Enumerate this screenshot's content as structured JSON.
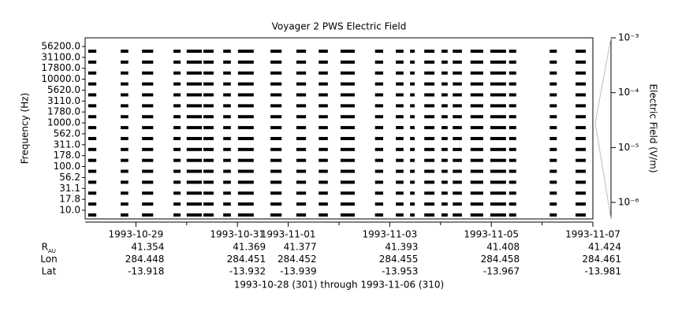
{
  "chart_data": {
    "type": "strip",
    "title": "Voyager 2 PWS Electric Field",
    "y_label": "Frequency (Hz)",
    "y2_label": "Electric Field (V/m)",
    "categories": [
      "56200.0",
      "31100.0",
      "17800.0",
      "10000.0",
      "5620.0",
      "3110.0",
      "1780.0",
      "1000.0",
      "562.0",
      "311.0",
      "178.0",
      "100.0",
      "56.2",
      "31.1",
      "17.8",
      "10.0"
    ],
    "color": "#000000",
    "xlim": [
      0,
      10
    ],
    "xticks": [
      {
        "value": 1,
        "label": "1993-10-29"
      },
      {
        "value": 3,
        "label": "1993-10-31"
      },
      {
        "value": 4,
        "label": "1993-11-01"
      },
      {
        "value": 6,
        "label": "1993-11-03"
      },
      {
        "value": 8,
        "label": "1993-11-05"
      },
      {
        "value": 10,
        "label": "1993-11-07"
      }
    ],
    "xminorticks": [
      2,
      5,
      7,
      9
    ],
    "coverage": [
      [
        0.06,
        0.22
      ],
      [
        0.7,
        0.85
      ],
      [
        1.12,
        1.34
      ],
      [
        1.74,
        1.88
      ],
      [
        2.0,
        2.3
      ],
      [
        2.33,
        2.53
      ],
      [
        2.72,
        2.87
      ],
      [
        3.01,
        3.32
      ],
      [
        3.65,
        3.87
      ],
      [
        4.16,
        4.35
      ],
      [
        4.6,
        4.78
      ],
      [
        5.03,
        5.31
      ],
      [
        5.71,
        5.87
      ],
      [
        6.12,
        6.27
      ],
      [
        6.4,
        6.49
      ],
      [
        6.68,
        6.88
      ],
      [
        7.02,
        7.14
      ],
      [
        7.24,
        7.42
      ],
      [
        7.59,
        7.84
      ],
      [
        7.98,
        8.29
      ],
      [
        8.35,
        8.49
      ],
      [
        9.15,
        9.29
      ],
      [
        9.66,
        9.86
      ]
    ],
    "y2scale": "log",
    "y2lim": [
      5e-07,
      0.001
    ],
    "y2ticks": [
      {
        "value": 0.001,
        "label": "10⁻³"
      },
      {
        "value": 0.0001,
        "label": "10⁻⁴"
      },
      {
        "value": 1e-05,
        "label": "10⁻⁵"
      },
      {
        "value": 1e-06,
        "label": "10⁻⁶"
      }
    ],
    "ephemeris": [
      {
        "label": "R",
        "sub": "AU",
        "values": [
          41.354,
          41.369,
          41.377,
          41.393,
          41.408,
          41.424
        ]
      },
      {
        "label": "Lon",
        "values": [
          284.448,
          284.451,
          284.452,
          284.455,
          284.458,
          284.461
        ]
      },
      {
        "label": "Lat",
        "values": [
          -13.918,
          -13.932,
          -13.939,
          -13.953,
          -13.967,
          -13.981
        ]
      }
    ],
    "footer": "1993-10-28 (301) through 1993-11-06 (310)"
  }
}
